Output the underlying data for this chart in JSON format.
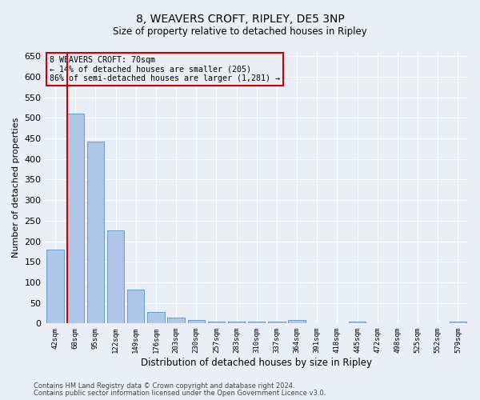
{
  "title": "8, WEAVERS CROFT, RIPLEY, DE5 3NP",
  "subtitle": "Size of property relative to detached houses in Ripley",
  "xlabel": "Distribution of detached houses by size in Ripley",
  "ylabel": "Number of detached properties",
  "footnote1": "Contains HM Land Registry data © Crown copyright and database right 2024.",
  "footnote2": "Contains public sector information licensed under the Open Government Licence v3.0.",
  "annotation_title": "8 WEAVERS CROFT: 70sqm",
  "annotation_line2": "← 14% of detached houses are smaller (205)",
  "annotation_line3": "86% of semi-detached houses are larger (1,281) →",
  "bar_labels": [
    "42sqm",
    "68sqm",
    "95sqm",
    "122sqm",
    "149sqm",
    "176sqm",
    "203sqm",
    "230sqm",
    "257sqm",
    "283sqm",
    "310sqm",
    "337sqm",
    "364sqm",
    "391sqm",
    "418sqm",
    "445sqm",
    "472sqm",
    "498sqm",
    "525sqm",
    "552sqm",
    "579sqm"
  ],
  "bar_values": [
    180,
    510,
    442,
    226,
    83,
    28,
    15,
    9,
    5,
    5,
    5,
    5,
    9,
    0,
    0,
    4,
    0,
    0,
    0,
    0,
    4
  ],
  "bar_color": "#aec6e8",
  "bar_edge_color": "#5a8fc2",
  "highlight_color": "#cc0000",
  "vline_bar_index": 1,
  "ylim": [
    0,
    660
  ],
  "yticks": [
    0,
    50,
    100,
    150,
    200,
    250,
    300,
    350,
    400,
    450,
    500,
    550,
    600,
    650
  ],
  "bg_color": "#eaeff7",
  "grid_color": "#ffffff",
  "title_fontsize": 10,
  "subtitle_fontsize": 9
}
